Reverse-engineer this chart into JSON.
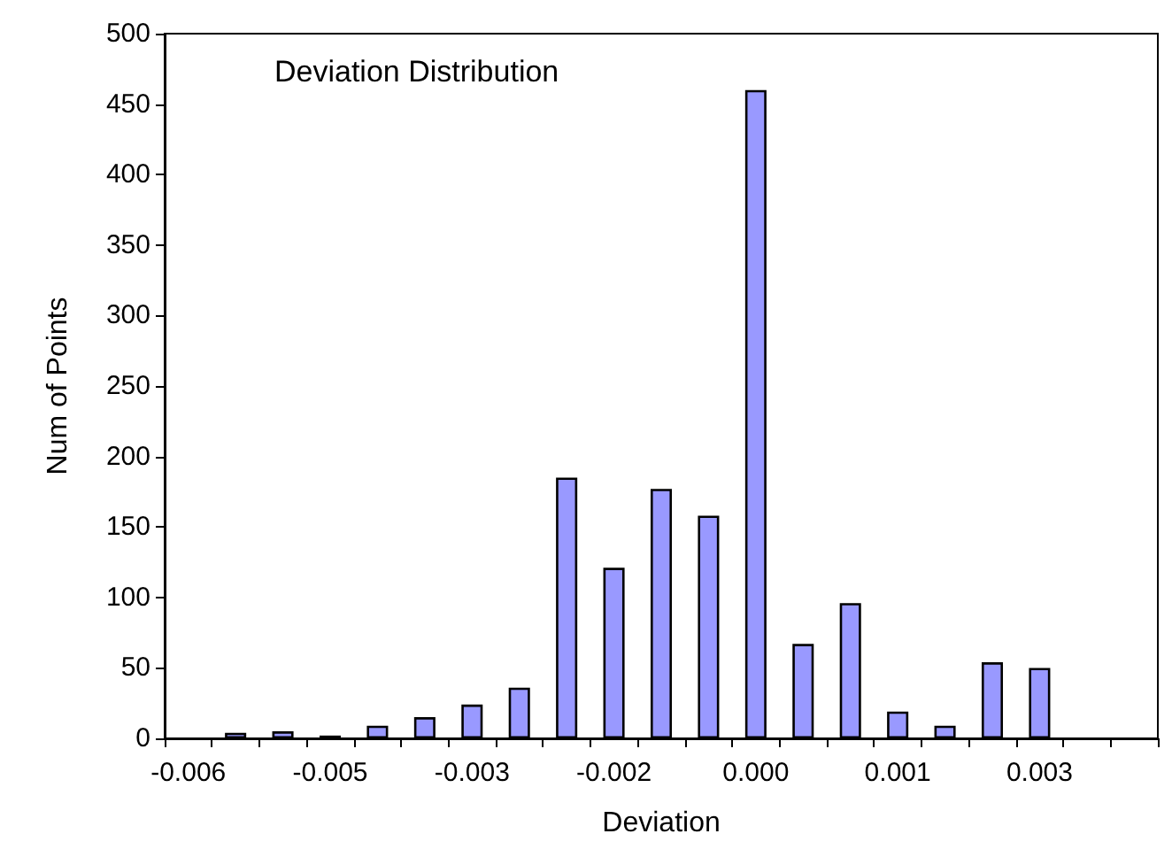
{
  "chart_data": {
    "type": "bar",
    "title": "Deviation Distribution",
    "xlabel": "Deviation",
    "ylabel": "Num of Points",
    "categories": [
      "-0.006",
      null,
      null,
      "-0.005",
      null,
      null,
      "-0.003",
      null,
      null,
      "-0.002",
      null,
      null,
      "0.000",
      null,
      null,
      "0.001",
      null,
      null,
      "0.003",
      null,
      null
    ],
    "values": [
      null,
      4,
      5,
      2,
      9,
      15,
      24,
      36,
      185,
      121,
      177,
      158,
      460,
      67,
      96,
      19,
      9,
      54,
      50,
      null,
      null
    ],
    "color": "#9999ff",
    "ylim": [
      0,
      500
    ],
    "yticks": [
      0,
      50,
      100,
      150,
      200,
      250,
      300,
      350,
      400,
      450,
      500
    ],
    "grid": false
  }
}
